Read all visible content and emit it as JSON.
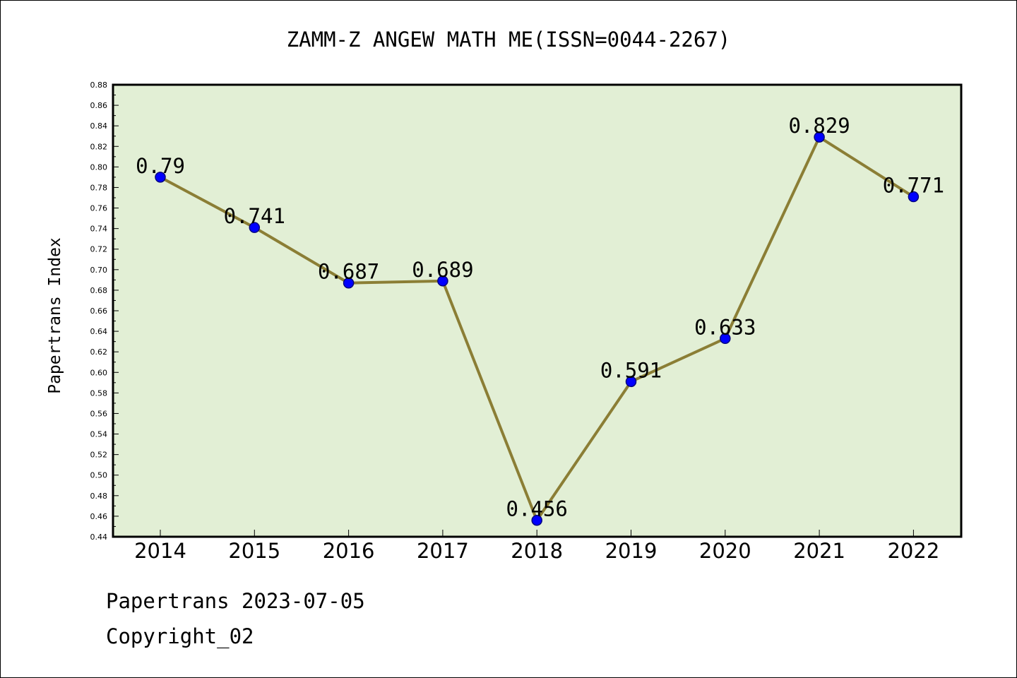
{
  "chart_data": {
    "type": "line",
    "title": "ZAMM-Z ANGEW MATH ME(ISSN=0044-2267)",
    "xlabel": "",
    "ylabel": "Papertrans Index",
    "categories": [
      "2014",
      "2015",
      "2016",
      "2017",
      "2018",
      "2019",
      "2020",
      "2021",
      "2022"
    ],
    "values": [
      0.79,
      0.741,
      0.687,
      0.689,
      0.456,
      0.591,
      0.633,
      0.829,
      0.771
    ],
    "data_labels": [
      "0.79",
      "0.741",
      "0.687",
      "0.689",
      "0.456",
      "0.591",
      "0.633",
      "0.829",
      "0.771"
    ],
    "ylim": [
      0.44,
      0.88
    ],
    "ytick_step": 0.02,
    "grid": false,
    "legend": "none",
    "colors": {
      "plot_bg": "#e2efd5",
      "line": "#8b7e35",
      "marker": "#0000ff",
      "marker_edge": "#000080"
    }
  },
  "footer": {
    "line1": "Papertrans 2023-07-05",
    "line2": "Copyright_02"
  }
}
